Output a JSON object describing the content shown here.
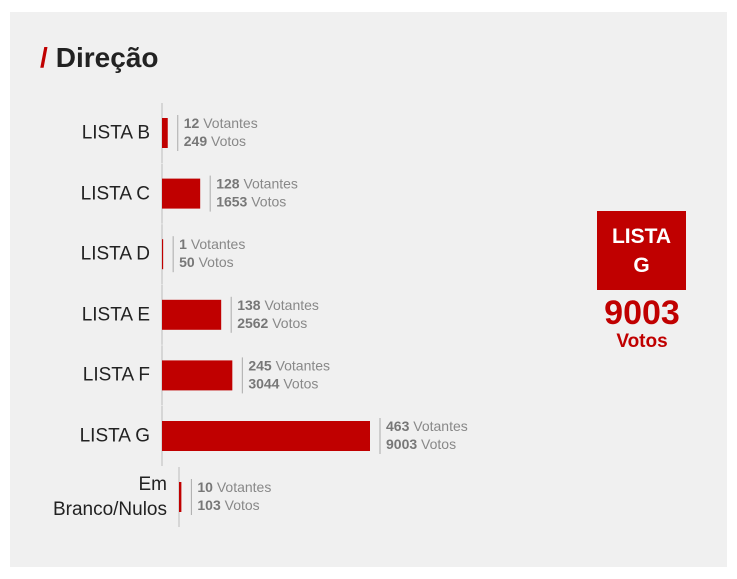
{
  "chart_data": {
    "type": "bar",
    "orientation": "horizontal",
    "title_mark": "/",
    "title": "Direção",
    "categories": [
      "LISTA B",
      "LISTA C",
      "LISTA D",
      "LISTA E",
      "LISTA F",
      "LISTA G",
      "Em Branco/Nulos"
    ],
    "series": [
      {
        "name": "Votos",
        "color": "#c00000",
        "values": [
          249,
          1653,
          50,
          2562,
          3044,
          9003,
          103
        ]
      },
      {
        "name": "Votantes",
        "values": [
          12,
          128,
          1,
          138,
          245,
          463,
          10
        ]
      }
    ]
  }
}
